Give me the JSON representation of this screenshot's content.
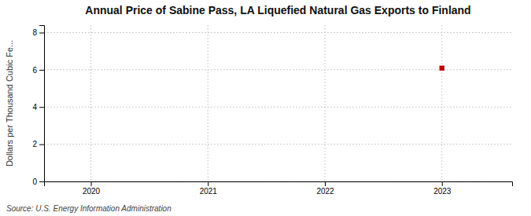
{
  "chart_data": {
    "type": "scatter",
    "title": "Annual Price of Sabine Pass, LA Liquefied Natural Gas Exports to Finland",
    "ylabel": "Dollars per Thousand Cubic Fe...",
    "annotation": "Source: U.S. Energy Information Administration",
    "x": [
      2023
    ],
    "values": [
      6.09
    ],
    "color": "#bb0000",
    "marker": "square",
    "xlim": [
      2019.6,
      2023.6
    ],
    "xticks": [
      2020,
      2021,
      2022,
      2023
    ],
    "ylim": [
      0,
      8.4
    ],
    "yticks": [
      0,
      2,
      4,
      6,
      8
    ],
    "grid": true
  }
}
